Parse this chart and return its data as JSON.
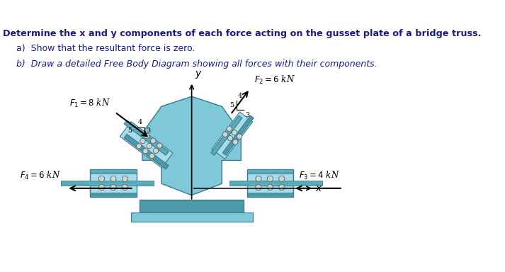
{
  "title_text": "Determine the x and y components of each force acting on the gusset plate of a bridge truss.",
  "part_a": "a)  Show that the resultant force is zero.",
  "part_b": "b)  Draw a detailed Free Body Diagram showing all forces with their components.",
  "pc_main": "#7EC8D8",
  "pc_dark": "#4A9AAA",
  "pc_light": "#A8DCE8",
  "pc_strip": "#5AACBC",
  "bg_color": "#ffffff",
  "F1_label": "$F_1 = 8$ kN",
  "F2_label": "$F_2 = 6$ kN",
  "F3_label": "$F_3 = 4$ kN",
  "F4_label": "$F_4 = 6$ kN",
  "text_color": "#1a1a8a"
}
